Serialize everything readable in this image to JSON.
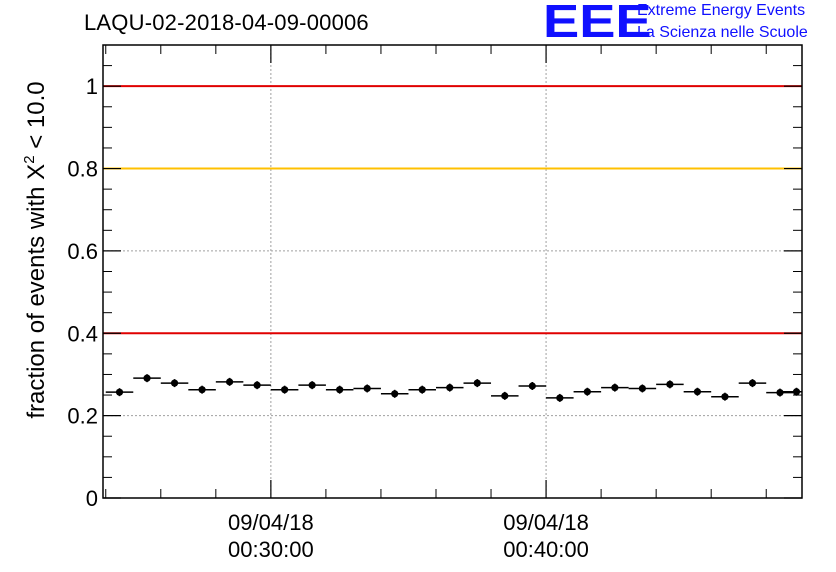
{
  "chart_data": {
    "type": "scatter",
    "title": "LAQU-02-2018-04-09-00006",
    "ylabel_prefix": "fraction of events with",
    "ylabel_symbol": "X",
    "ylabel_power": "2",
    "ylabel_suffix": " < 10.0",
    "xlabel": "",
    "ylim": [
      0,
      1.1
    ],
    "yticks": [
      0,
      0.2,
      0.4,
      0.6,
      0.8,
      1
    ],
    "ytick_labels": [
      "0",
      "0.2",
      "0.4",
      "0.6",
      "0.8",
      "1"
    ],
    "xlim_minutes": [
      23.9,
      49.3
    ],
    "xtick_major": [
      {
        "minute": 30,
        "label_date": "09/04/18",
        "label_time": "00:30:00"
      },
      {
        "minute": 40,
        "label_date": "09/04/18",
        "label_time": "00:40:00"
      }
    ],
    "grid": true,
    "reference_lines": [
      {
        "y": 1.0,
        "color": "#e00000"
      },
      {
        "y": 0.8,
        "color": "#ffc000"
      },
      {
        "y": 0.4,
        "color": "#e00000"
      }
    ],
    "bin_width_minutes": 1,
    "series": [
      {
        "x_minutes": [
          24.5,
          25.5,
          26.5,
          27.5,
          28.5,
          29.5,
          30.5,
          31.5,
          32.5,
          33.5,
          34.5,
          35.5,
          36.5,
          37.5,
          38.5,
          39.5,
          40.5,
          41.5,
          42.5,
          43.5,
          44.5,
          45.5,
          46.5,
          47.5,
          48.5,
          49.1
        ],
        "values": [
          0.257,
          0.291,
          0.279,
          0.263,
          0.282,
          0.274,
          0.263,
          0.274,
          0.263,
          0.266,
          0.253,
          0.263,
          0.268,
          0.279,
          0.248,
          0.272,
          0.243,
          0.258,
          0.268,
          0.266,
          0.276,
          0.258,
          0.246,
          0.279,
          0.256,
          0.258
        ]
      }
    ]
  },
  "logo": {
    "mark": "EEE",
    "line1": "Extreme Energy Events",
    "line2": "La Scienza nelle Scuole"
  },
  "colors": {
    "axis": "#000000",
    "grid": "#a0a0a0",
    "points": "#000000",
    "logo": "#1010ff"
  }
}
